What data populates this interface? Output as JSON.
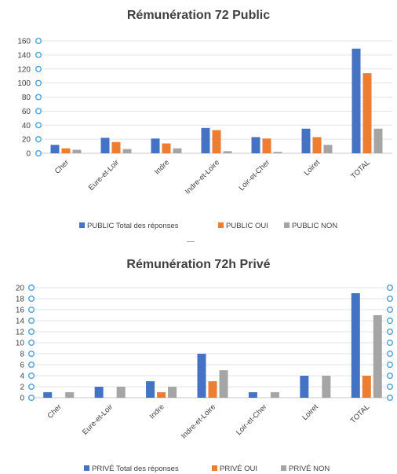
{
  "colors": {
    "total": "#4472C4",
    "oui": "#ED7D31",
    "non": "#A5A5A5"
  },
  "chart_data": [
    {
      "type": "bar",
      "title": "Rémunération 72 Public",
      "categories": [
        "Cher",
        "Eure-et-Loir",
        "Indre",
        "Indre-et-Loire",
        "Loir-et-Cher",
        "Loiret",
        "TOTAL"
      ],
      "series": [
        {
          "name": "PUBLIC Total des réponses",
          "values": [
            12,
            22,
            21,
            36,
            23,
            35,
            149
          ]
        },
        {
          "name": "PUBLIC OUI",
          "values": [
            7,
            16,
            14,
            33,
            21,
            23,
            114
          ]
        },
        {
          "name": "PUBLIC NON",
          "values": [
            5,
            6,
            7,
            3,
            2,
            12,
            35
          ]
        }
      ],
      "ylim": [
        0,
        160
      ],
      "yticks": [
        0,
        20,
        40,
        60,
        80,
        100,
        120,
        140,
        160
      ],
      "grid": true,
      "legend": "bottom"
    },
    {
      "type": "bar",
      "title": "Rémunération 72h Privé",
      "categories": [
        "Cher",
        "Eure-et-Loir",
        "Indre",
        "Indre-et-Loire",
        "Loir-et-Cher",
        "Loiret",
        "TOTAL"
      ],
      "series": [
        {
          "name": "PRIVÉ Total des réponses",
          "values": [
            1,
            2,
            3,
            8,
            1,
            4,
            19
          ]
        },
        {
          "name": "PRIVÉ OUI",
          "values": [
            0,
            0,
            1,
            3,
            0,
            0,
            4
          ]
        },
        {
          "name": "PRIVÉ NON",
          "values": [
            1,
            2,
            2,
            5,
            1,
            4,
            15
          ]
        }
      ],
      "ylim": [
        0,
        20
      ],
      "yticks": [
        0,
        2,
        4,
        6,
        8,
        10,
        12,
        14,
        16,
        18,
        20
      ],
      "grid": true,
      "legend": "bottom"
    }
  ]
}
